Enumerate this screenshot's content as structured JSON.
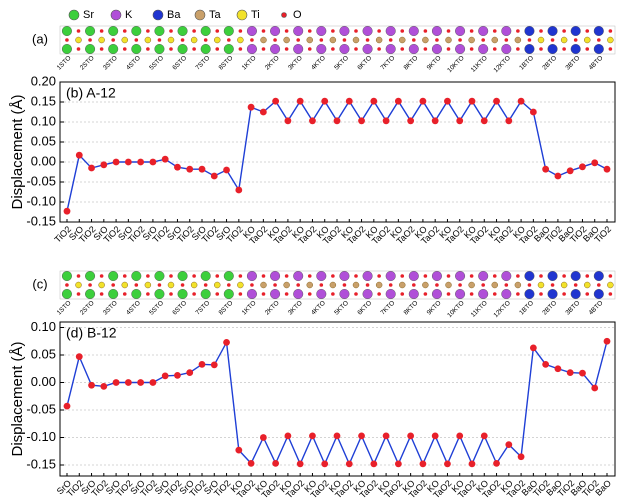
{
  "atom_legend": [
    {
      "name": "Sr",
      "color": "#3ccf3c"
    },
    {
      "name": "K",
      "color": "#b04fd8"
    },
    {
      "name": "Ba",
      "color": "#2035d0"
    },
    {
      "name": "Ta",
      "color": "#c9a06a"
    },
    {
      "name": "Ti",
      "color": "#f2e22a"
    },
    {
      "name": "O",
      "color": "#e8202a"
    }
  ],
  "structures": [
    {
      "label": "(a)",
      "units": [
        "1STO",
        "2STO",
        "3STO",
        "4STO",
        "5STO",
        "6STO",
        "7STO",
        "8STO",
        "1KTO",
        "2KTO",
        "3KTO",
        "4KTO",
        "5KTO",
        "6KTO",
        "7KTO",
        "8KTO",
        "9KTO",
        "10KTO",
        "11KTO",
        "12KTO",
        "1BTO",
        "2BTO",
        "3BTO",
        "4BTO"
      ]
    },
    {
      "label": "(c)",
      "units": [
        "1STO",
        "2STO",
        "3STO",
        "4STO",
        "5STO",
        "6STO",
        "7STO",
        "8STO",
        "1KTO",
        "2KTO",
        "3KTO",
        "4KTO",
        "5KTO",
        "6KTO",
        "7KTO",
        "8KTO",
        "9KTO",
        "10KTO",
        "11KTO",
        "12KTO",
        "1BTO",
        "2BTO",
        "3BTO",
        "4BTO"
      ]
    }
  ],
  "chart_data": [
    {
      "type": "line",
      "panel_label": "(b) A-12",
      "ylabel": "Displacement (Å)",
      "categories": [
        "TiO2",
        "SrO",
        "TiO2",
        "SrO",
        "TiO2",
        "SrO",
        "TiO2",
        "SrO",
        "TiO2",
        "SrO",
        "TiO2",
        "SrO",
        "TiO2",
        "SrO",
        "TiO2",
        "KO",
        "TaO2",
        "KO",
        "TaO2",
        "KO",
        "TaO2",
        "KO",
        "TaO2",
        "KO",
        "TaO2",
        "KO",
        "TaO2",
        "KO",
        "TaO2",
        "KO",
        "TaO2",
        "KO",
        "TaO2",
        "KO",
        "TaO2",
        "KO",
        "TaO2",
        "KO",
        "TaO2",
        "BaO",
        "TiO2",
        "BaO",
        "TiO2",
        "BaO",
        "TiO2"
      ],
      "series": [
        {
          "color": "#1f3fd6",
          "marker_color": "#e8202a",
          "values": [
            -0.123,
            0.017,
            -0.015,
            -0.007,
            0.0,
            0.0,
            0.0,
            0.0,
            0.007,
            -0.013,
            -0.018,
            -0.018,
            -0.035,
            -0.02,
            -0.07,
            0.137,
            0.125,
            0.152,
            0.103,
            0.152,
            0.103,
            0.152,
            0.103,
            0.152,
            0.103,
            0.152,
            0.103,
            0.152,
            0.103,
            0.152,
            0.103,
            0.152,
            0.103,
            0.152,
            0.103,
            0.152,
            0.103,
            0.152,
            0.125,
            -0.018,
            -0.035,
            -0.022,
            -0.012,
            -0.002,
            -0.018
          ]
        }
      ],
      "ylim": [
        -0.15,
        0.2
      ],
      "yticks": [
        {
          "value": -0.15,
          "label": "-0.15"
        },
        {
          "value": -0.1,
          "label": "-0.10"
        },
        {
          "value": -0.05,
          "label": "-0.05"
        },
        {
          "value": 0,
          "label": "0.00"
        },
        {
          "value": 0.05,
          "label": "0.05"
        },
        {
          "value": 0.1,
          "label": "0.10"
        },
        {
          "value": 0.15,
          "label": "0.15"
        },
        {
          "value": 0.2,
          "label": "0.20"
        }
      ],
      "grid": true
    },
    {
      "type": "line",
      "panel_label": "(d) B-12",
      "ylabel": "Displacement (Å)",
      "categories": [
        "SrO",
        "TiO2",
        "SrO",
        "TiO2",
        "SrO",
        "TiO2",
        "SrO",
        "TiO2",
        "SrO",
        "TiO2",
        "SrO",
        "TiO2",
        "SrO",
        "TiO2",
        "KO",
        "TaO2",
        "KO",
        "TaO2",
        "KO",
        "TaO2",
        "KO",
        "TaO2",
        "KO",
        "TaO2",
        "KO",
        "TaO2",
        "KO",
        "TaO2",
        "KO",
        "TaO2",
        "KO",
        "TaO2",
        "KO",
        "TaO2",
        "KO",
        "TaO2",
        "KO",
        "TaO2",
        "BaO",
        "TiO2",
        "BaO",
        "TiO2",
        "BaO",
        "TiO2",
        "BaO"
      ],
      "series": [
        {
          "color": "#1f3fd6",
          "marker_color": "#e8202a",
          "values": [
            -0.043,
            0.047,
            -0.005,
            -0.007,
            0.0,
            0.0,
            0.0,
            0.0,
            0.012,
            0.013,
            0.018,
            0.033,
            0.032,
            0.073,
            -0.123,
            -0.147,
            -0.1,
            -0.147,
            -0.097,
            -0.148,
            -0.097,
            -0.148,
            -0.097,
            -0.148,
            -0.097,
            -0.148,
            -0.097,
            -0.148,
            -0.097,
            -0.148,
            -0.097,
            -0.148,
            -0.097,
            -0.148,
            -0.097,
            -0.147,
            -0.113,
            -0.135,
            0.063,
            0.033,
            0.025,
            0.018,
            0.017,
            -0.01,
            0.075
          ]
        }
      ],
      "ylim": [
        -0.17,
        0.11
      ],
      "yticks": [
        {
          "value": -0.15,
          "label": "-0.15"
        },
        {
          "value": -0.1,
          "label": "-0.10"
        },
        {
          "value": -0.05,
          "label": "-0.05"
        },
        {
          "value": 0,
          "label": "0.00"
        },
        {
          "value": 0.05,
          "label": "0.05"
        },
        {
          "value": 0.1,
          "label": "0.10"
        }
      ],
      "grid": true
    }
  ]
}
